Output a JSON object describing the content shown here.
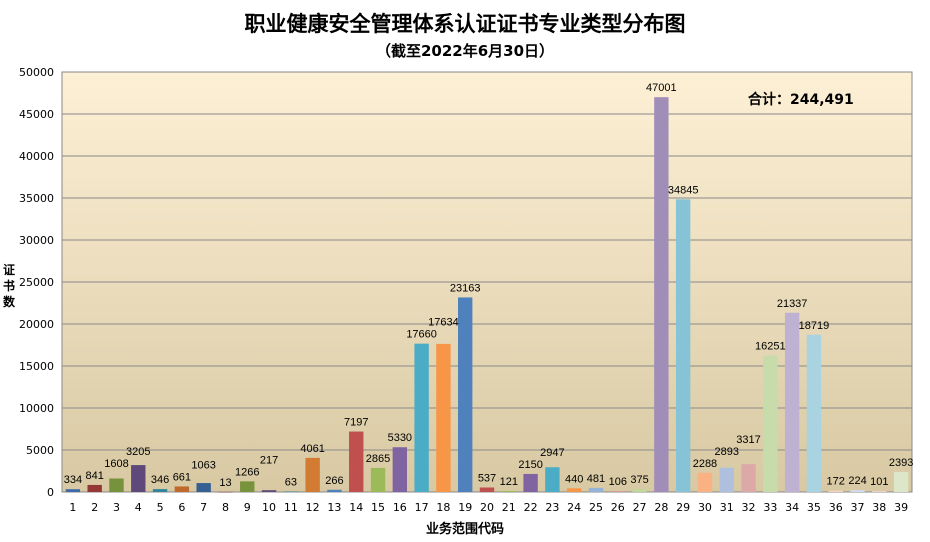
{
  "chart_data": {
    "type": "bar",
    "title": "职业健康安全管理体系认证证书专业类型分布图",
    "subtitle": "（截至2022年6月30日）",
    "xlabel": "业务范围代码",
    "ylabel": "证书数",
    "ylim": [
      0,
      50000
    ],
    "yticks": [
      0,
      5000,
      10000,
      15000,
      20000,
      25000,
      30000,
      35000,
      40000,
      45000,
      50000
    ],
    "grid": true,
    "annotation": "合计：244,491",
    "categories": [
      "1",
      "2",
      "3",
      "4",
      "5",
      "6",
      "7",
      "8",
      "9",
      "10",
      "11",
      "12",
      "13",
      "14",
      "15",
      "16",
      "17",
      "18",
      "19",
      "20",
      "21",
      "22",
      "23",
      "24",
      "25",
      "26",
      "27",
      "28",
      "29",
      "30",
      "31",
      "32",
      "33",
      "34",
      "35",
      "36",
      "37",
      "38",
      "39"
    ],
    "values": [
      334,
      841,
      1608,
      3205,
      346,
      661,
      1063,
      13,
      1266,
      217,
      63,
      4061,
      266,
      7197,
      2865,
      5330,
      17660,
      17634,
      23163,
      537,
      121,
      2150,
      2947,
      440,
      481,
      106,
      375,
      47001,
      34845,
      2288,
      2893,
      3317,
      16251,
      21337,
      18719,
      172,
      224,
      101,
      2393
    ],
    "colors": [
      "#3E6BA5",
      "#953735",
      "#76923C",
      "#5F497A",
      "#31859C",
      "#C0692C",
      "#376092",
      "#8C3836",
      "#77933C",
      "#604A7B",
      "#31859C",
      "#D27B33",
      "#4F81BD",
      "#C0504D",
      "#9BBB59",
      "#8064A2",
      "#4BACC6",
      "#F79646",
      "#4F81BD",
      "#C0504D",
      "#9BBB59",
      "#8064A2",
      "#4BACC6",
      "#F79646",
      "#95B3D7",
      "#D99694",
      "#C3D69B",
      "#A08EB8",
      "#86C3D6",
      "#FAB183",
      "#AFC0DE",
      "#DDA9A8",
      "#C8DBAB",
      "#BFB1D2",
      "#A9D3E1",
      "#F8D2C0",
      "#D0D9EE",
      "#EDD6D5",
      "#DCE6C8"
    ]
  }
}
